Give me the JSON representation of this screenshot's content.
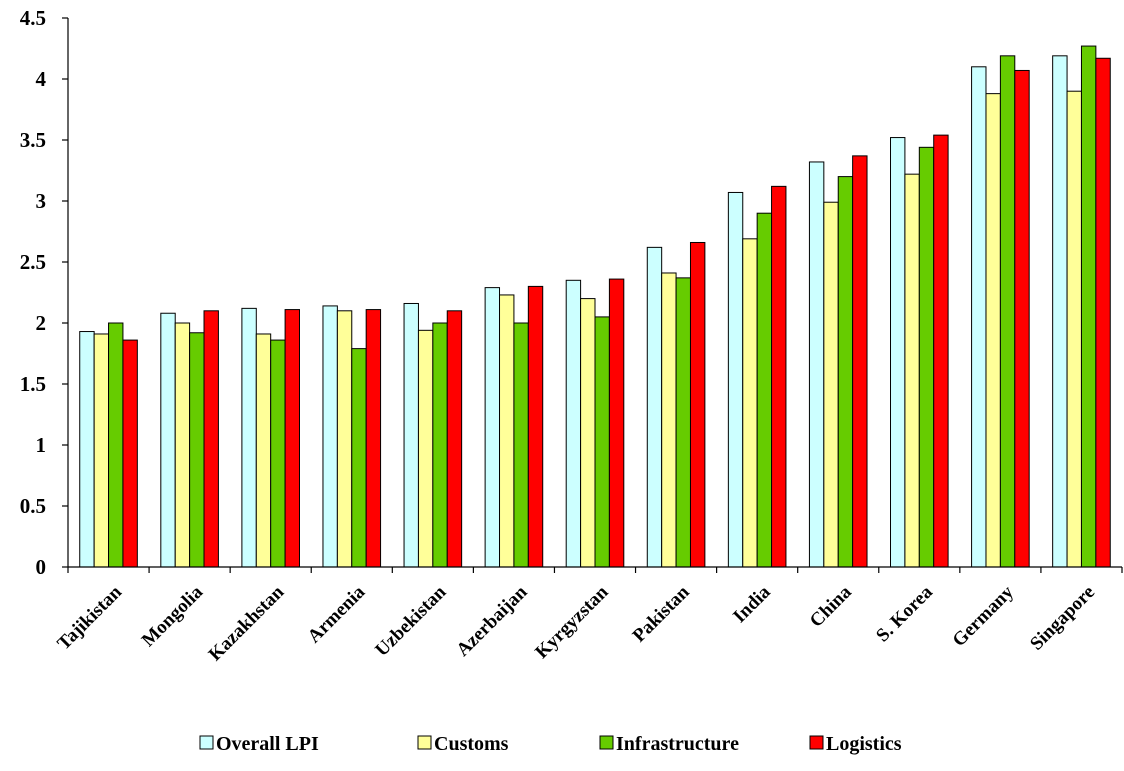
{
  "chart_data": {
    "type": "bar",
    "title": "",
    "xlabel": "",
    "ylabel": "",
    "ylim": [
      0,
      4.5
    ],
    "yticks": [
      "0",
      "0.5",
      "1",
      "1.5",
      "2",
      "2.5",
      "3",
      "3.5",
      "4",
      "4.5"
    ],
    "grid": false,
    "legend_position": "bottom",
    "categories": [
      "Tajikistan",
      "Mongolia",
      "Kazakhstan",
      "Armenia",
      "Uzbekistan",
      "Azerbaijan",
      "Kyrgyzstan",
      "Pakistan",
      "India",
      "China",
      "S. Korea",
      "Germany",
      "Singapore"
    ],
    "series": [
      {
        "name": "Overall LPI",
        "color": "#ccffff",
        "values": [
          1.93,
          2.08,
          2.12,
          2.14,
          2.16,
          2.29,
          2.35,
          2.62,
          3.07,
          3.32,
          3.52,
          4.1,
          4.19
        ]
      },
      {
        "name": "Customs",
        "color": "#ffff99",
        "values": [
          1.91,
          2.0,
          1.91,
          2.1,
          1.94,
          2.23,
          2.2,
          2.41,
          2.69,
          2.99,
          3.22,
          3.88,
          3.9
        ]
      },
      {
        "name": "Infrastructure",
        "color": "#66cc00",
        "values": [
          2.0,
          1.92,
          1.86,
          1.79,
          2.0,
          2.0,
          2.05,
          2.37,
          2.9,
          3.2,
          3.44,
          4.19,
          4.27
        ]
      },
      {
        "name": "Logistics",
        "color": "#ff0000",
        "values": [
          1.86,
          2.1,
          2.11,
          2.11,
          2.1,
          2.3,
          2.36,
          2.66,
          3.12,
          3.37,
          3.54,
          4.07,
          4.17
        ]
      }
    ]
  }
}
